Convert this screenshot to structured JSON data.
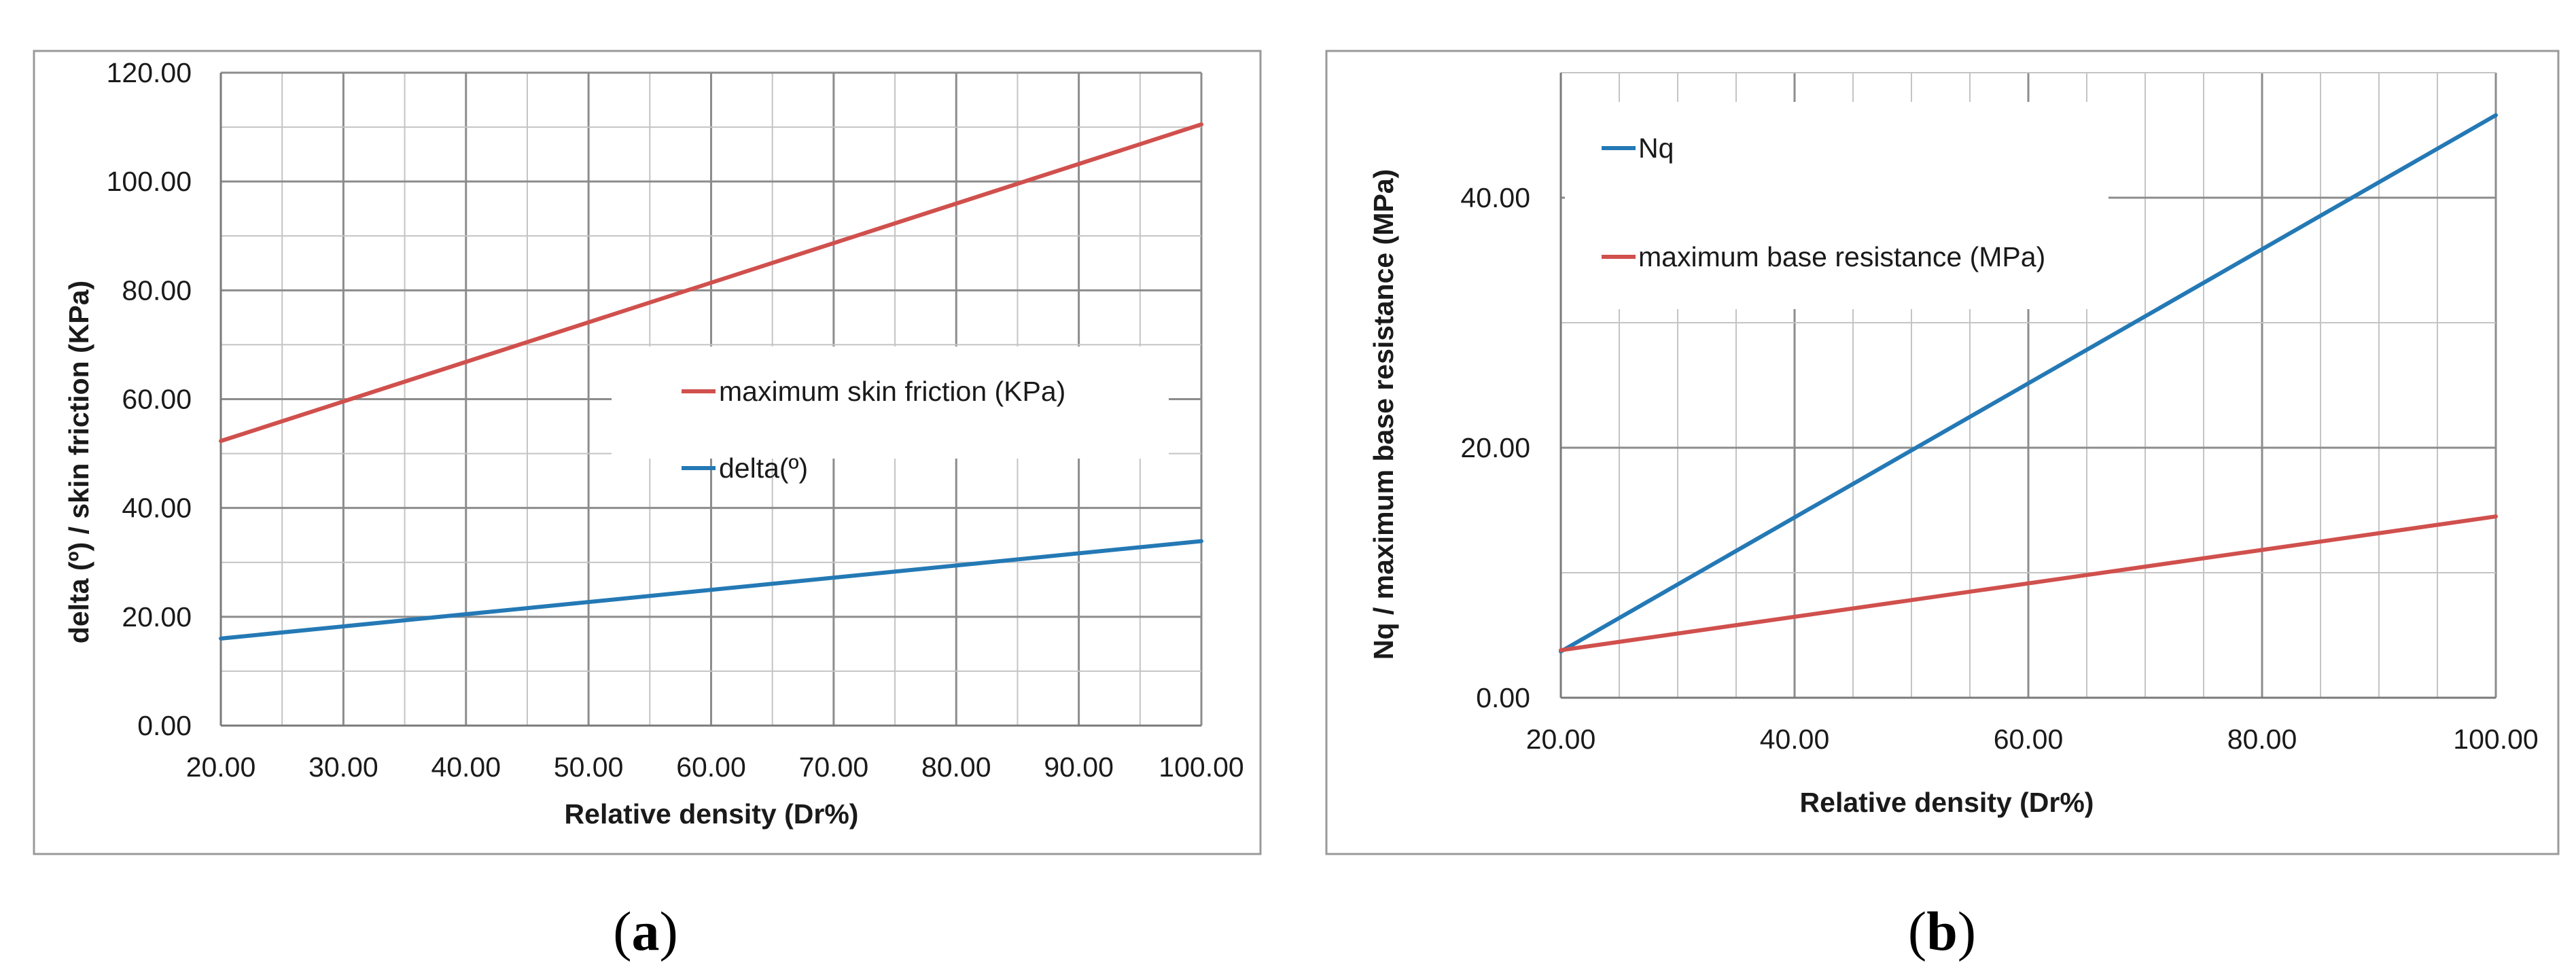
{
  "chart_data": [
    {
      "type": "line",
      "caption_label": "a",
      "xlabel": "Relative density (Dr%)",
      "ylabel": "delta (º) / skin friction (KPa)",
      "xlim": [
        20,
        100
      ],
      "ylim": [
        0,
        120
      ],
      "x_ticks": [
        "20.00",
        "30.00",
        "40.00",
        "50.00",
        "60.00",
        "70.00",
        "80.00",
        "90.00",
        "100.00"
      ],
      "y_ticks": [
        "0.00",
        "20.00",
        "40.00",
        "60.00",
        "80.00",
        "100.00",
        "120.00"
      ],
      "x_tick_values": [
        20,
        30,
        40,
        50,
        60,
        70,
        80,
        90,
        100
      ],
      "y_tick_values": [
        0,
        20,
        40,
        60,
        80,
        100,
        120
      ],
      "x_minor_step": 5,
      "y_minor_step": 10,
      "legend_position": "center-right",
      "series": [
        {
          "name": "maximum skin friction (KPa)",
          "color": "#d0504d",
          "x": [
            20,
            100
          ],
          "y": [
            52.3,
            110.5
          ]
        },
        {
          "name": "delta(º)",
          "color": "#2479b5",
          "x": [
            20,
            100
          ],
          "y": [
            16.0,
            33.9
          ]
        }
      ]
    },
    {
      "type": "line",
      "caption_label": "b",
      "xlabel": "Relative density (Dr%)",
      "ylabel": "Nq / maximum base resistance (MPa)",
      "xlim": [
        20,
        100
      ],
      "ylim": [
        0,
        50
      ],
      "x_ticks": [
        "20.00",
        "40.00",
        "60.00",
        "80.00",
        "100.00"
      ],
      "y_ticks": [
        "0.00",
        "20.00",
        "40.00"
      ],
      "x_tick_values": [
        20,
        40,
        60,
        80,
        100
      ],
      "y_tick_values": [
        0,
        20,
        40
      ],
      "x_minor_step": 5,
      "y_minor_step": 10,
      "legend_position": "top-left",
      "series": [
        {
          "name": "Nq",
          "color": "#2479b5",
          "x": [
            20,
            100
          ],
          "y": [
            3.7,
            46.6
          ]
        },
        {
          "name": "maximum base resistance  (MPa)",
          "color": "#d0504d",
          "x": [
            20,
            100
          ],
          "y": [
            3.8,
            14.5
          ]
        }
      ]
    }
  ]
}
